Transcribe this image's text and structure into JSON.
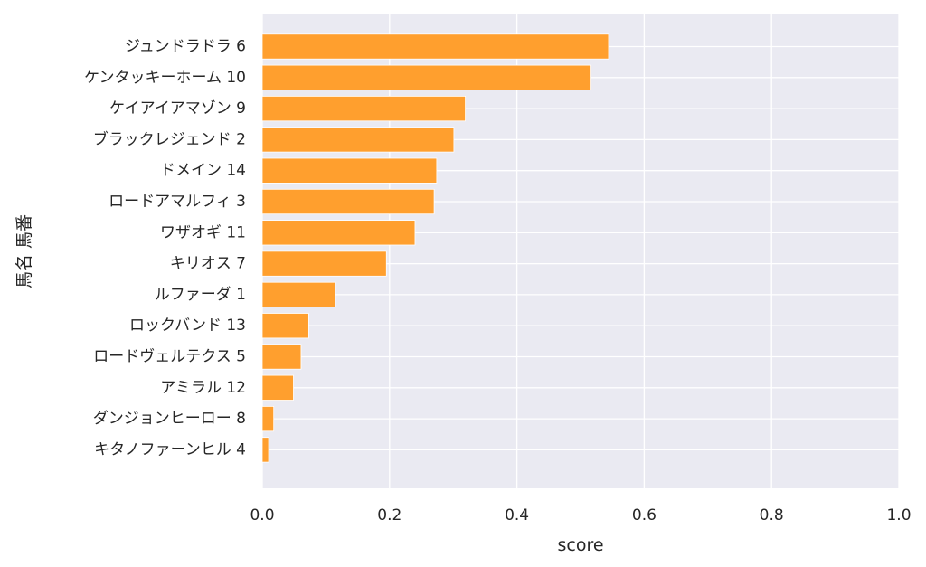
{
  "chart_data": {
    "type": "bar",
    "orientation": "horizontal",
    "title": "",
    "xlabel": "score",
    "ylabel": "馬名 馬番",
    "xlim": [
      0.0,
      1.0
    ],
    "x_ticks": [
      "0.0",
      "0.2",
      "0.4",
      "0.6",
      "0.8",
      "1.0"
    ],
    "grid": true,
    "colors": {
      "bar": "#ff9f2e",
      "bar_edge": "#ffffff",
      "background": "#eaeaf2",
      "grid": "#ffffff"
    },
    "categories": [
      "ジュンドラドラ 6",
      "ケンタッキーホーム 10",
      "ケイアイアマゾン 9",
      "ブラックレジェンド 2",
      "ドメイン 14",
      "ロードアマルフィ 3",
      "ワザオギ 11",
      "キリオス 7",
      "ルファーダ 1",
      "ロックバンド 13",
      "ロードヴェルテクス 5",
      "アミラル 12",
      "ダンジョンヒーロー 8",
      "キタノファーンヒル 4"
    ],
    "values": [
      0.544,
      0.515,
      0.319,
      0.301,
      0.274,
      0.27,
      0.24,
      0.195,
      0.115,
      0.073,
      0.061,
      0.049,
      0.018,
      0.01
    ]
  }
}
